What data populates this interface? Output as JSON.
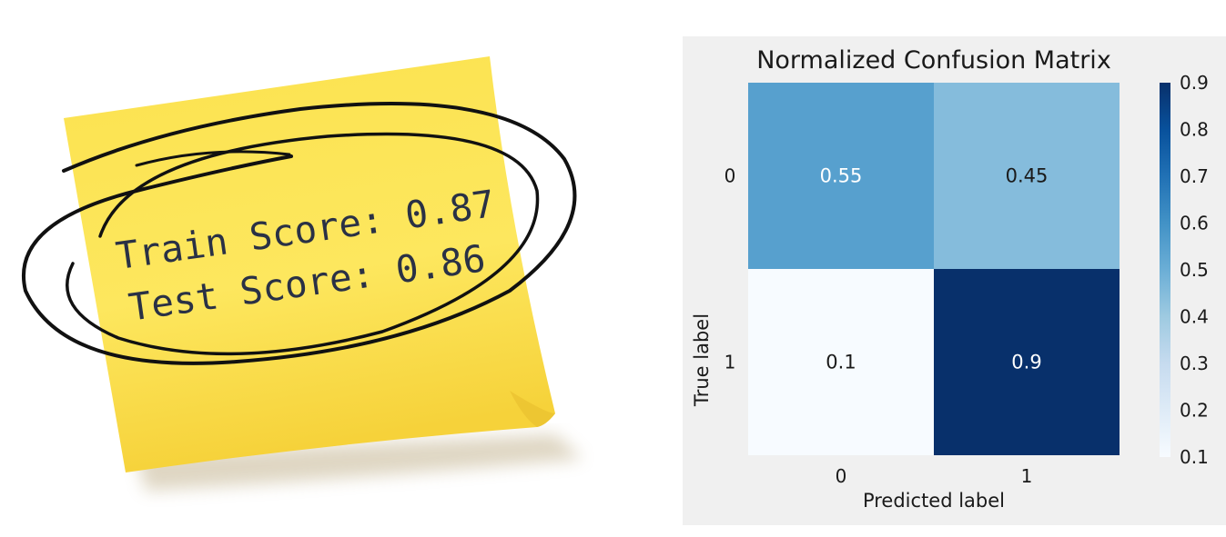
{
  "sticky_note": {
    "lines": [
      "Train Score: 0.87",
      "Test Score: 0.86"
    ],
    "note_color": "#fbe04f",
    "ink_color": "#111111"
  },
  "chart_data": {
    "type": "heatmap",
    "title": "Normalized Confusion Matrix",
    "xlabel": "Predicted label",
    "ylabel": "True label",
    "x_categories": [
      "0",
      "1"
    ],
    "y_categories": [
      "0",
      "1"
    ],
    "values": [
      [
        0.55,
        0.45
      ],
      [
        0.1,
        0.9
      ]
    ],
    "cell_labels": [
      [
        "0.55",
        "0.45"
      ],
      [
        "0.1",
        "0.9"
      ]
    ],
    "colormap": "Blues",
    "colorbar": {
      "range": [
        0.1,
        0.9
      ],
      "ticks": [
        "0.1",
        "0.2",
        "0.3",
        "0.4",
        "0.5",
        "0.6",
        "0.7",
        "0.8",
        "0.9"
      ]
    },
    "grid": false,
    "background_color": "#f0f0f0"
  }
}
